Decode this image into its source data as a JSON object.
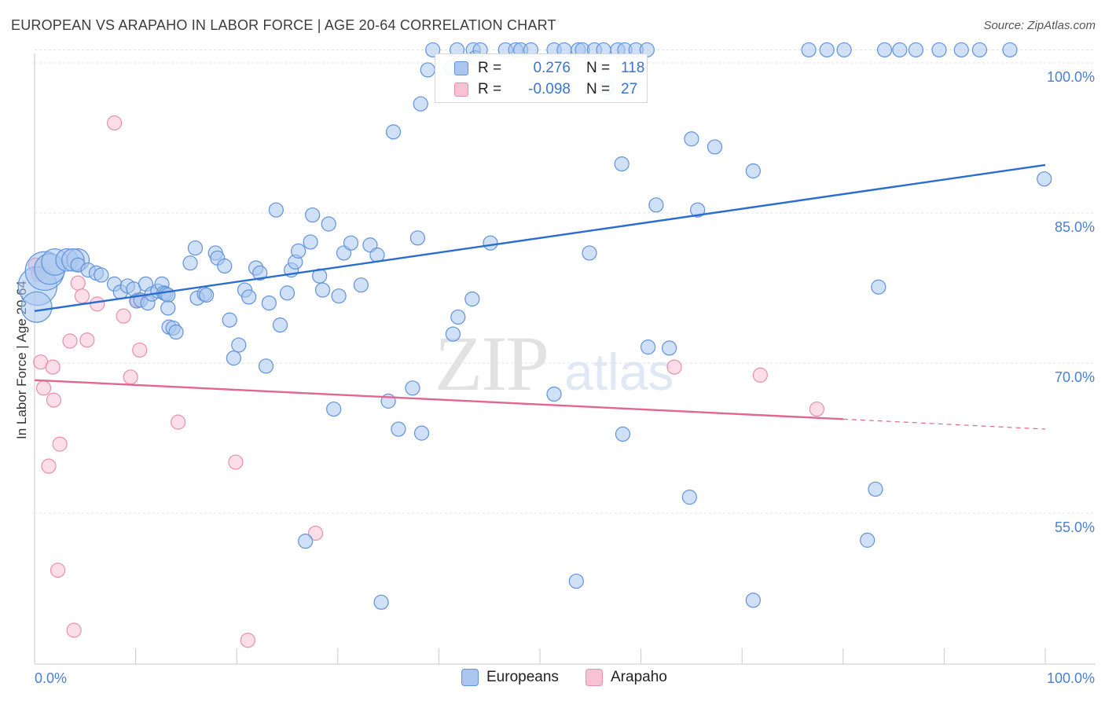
{
  "header": {
    "title": "EUROPEAN VS ARAPAHO IN LABOR FORCE | AGE 20-64 CORRELATION CHART",
    "source": "Source: ZipAtlas.com"
  },
  "watermark": {
    "zip": "ZIP",
    "atlas": "atlas"
  },
  "legend": {
    "rows": [
      {
        "r_label": "R =",
        "r_value": "0.276",
        "n_label": "N =",
        "n_value": "118",
        "color": "#a9c6ef",
        "stroke": "#5f93dc"
      },
      {
        "r_label": "R =",
        "r_value": "-0.098",
        "n_label": "N =",
        "n_value": "27",
        "color": "#f7c3d4",
        "stroke": "#e890ab"
      }
    ]
  },
  "bottom_legend": {
    "europeans": "Europeans",
    "arapaho": "Arapaho"
  },
  "colors": {
    "european_fill": "#a9c6ef",
    "european_stroke": "#5f93dc",
    "european_line": "#2a6dcf",
    "arapaho_fill": "#f7c3d4",
    "arapaho_stroke": "#e890ab",
    "arapaho_line": "#e2668e",
    "grid": "#dde2ea",
    "tick_label": "#4a7fd4"
  },
  "chart_data": {
    "type": "scatter",
    "title": "EUROPEAN VS ARAPAHO IN LABOR FORCE | AGE 20-64 CORRELATION CHART",
    "xlabel": "",
    "ylabel": "In Labor Force | Age 20-64",
    "xlim": [
      0,
      100
    ],
    "ylim": [
      38.5,
      102
    ],
    "x_tick_labels": {
      "left": "0.0%",
      "right": "100.0%"
    },
    "y_ticks": [
      {
        "value": 100,
        "label": "100.0%"
      },
      {
        "value": 85,
        "label": "85.0%"
      },
      {
        "value": 70,
        "label": "70.0%"
      },
      {
        "value": 55,
        "label": "55.0%"
      }
    ],
    "series": [
      {
        "name": "Europeans",
        "R": 0.276,
        "N": 118,
        "trend": {
          "x0": 0,
          "y0": 75.2,
          "x1": 100,
          "y1": 89.8
        },
        "points": [
          [
            0.3,
            77.7,
            6
          ],
          [
            0.2,
            75.6,
            4
          ],
          [
            1,
            79.2,
            6
          ],
          [
            1.5,
            79.4,
            4
          ],
          [
            2,
            80.1,
            3
          ],
          [
            3.2,
            80.3,
            2
          ],
          [
            4.3,
            80.3,
            2
          ],
          [
            3.8,
            80.3,
            2
          ],
          [
            4.3,
            79.8,
            1
          ],
          [
            5.3,
            79.3,
            1
          ],
          [
            6.1,
            79,
            1
          ],
          [
            6.6,
            78.8,
            1
          ],
          [
            7.9,
            77.9,
            1
          ],
          [
            8.5,
            77.1,
            1
          ],
          [
            9.2,
            77.7,
            1
          ],
          [
            9.8,
            77.4,
            1
          ],
          [
            10.1,
            76.2,
            1
          ],
          [
            10.5,
            76.3,
            1
          ],
          [
            11,
            77.9,
            1
          ],
          [
            11.2,
            76,
            1
          ],
          [
            11.6,
            76.9,
            1
          ],
          [
            12.2,
            77.2,
            1
          ],
          [
            12.6,
            77.9,
            1
          ],
          [
            12.8,
            77,
            1
          ],
          [
            13,
            76.9,
            1
          ],
          [
            13.2,
            76.8,
            1
          ],
          [
            13.3,
            73.6,
            1
          ],
          [
            13.7,
            73.5,
            1
          ],
          [
            14,
            73.1,
            1
          ],
          [
            13.2,
            75.5,
            1
          ],
          [
            15.4,
            80,
            1
          ],
          [
            15.9,
            81.5,
            1
          ],
          [
            16.1,
            76.5,
            1
          ],
          [
            16.8,
            76.9,
            1
          ],
          [
            17,
            76.8,
            1
          ],
          [
            17.9,
            81,
            1
          ],
          [
            18.1,
            80.5,
            1
          ],
          [
            18.8,
            79.7,
            1
          ],
          [
            19.3,
            74.3,
            1
          ],
          [
            19.7,
            70.5,
            1
          ],
          [
            20.2,
            71.8,
            1
          ],
          [
            20.8,
            77.3,
            1
          ],
          [
            21.2,
            76.6,
            1
          ],
          [
            21.9,
            79.5,
            1
          ],
          [
            22.3,
            79,
            1
          ],
          [
            22.9,
            69.7,
            1
          ],
          [
            23.2,
            76,
            1
          ],
          [
            23.9,
            85.3,
            1
          ],
          [
            24.3,
            73.8,
            1
          ],
          [
            25,
            77,
            1
          ],
          [
            25.4,
            79.3,
            1
          ],
          [
            25.8,
            80.1,
            1
          ],
          [
            26.1,
            81.2,
            1
          ],
          [
            26.8,
            52.2,
            1
          ],
          [
            27.3,
            82.1,
            1
          ],
          [
            27.5,
            84.8,
            1
          ],
          [
            28.2,
            78.7,
            1
          ],
          [
            28.5,
            77.3,
            1
          ],
          [
            29.1,
            83.9,
            1
          ],
          [
            29.6,
            65.4,
            1
          ],
          [
            30.1,
            76.7,
            1
          ],
          [
            30.6,
            81,
            1
          ],
          [
            31.3,
            82,
            1
          ],
          [
            32.3,
            77.8,
            1
          ],
          [
            33.2,
            81.8,
            1
          ],
          [
            33.9,
            80.8,
            1
          ],
          [
            34.3,
            46.1,
            1
          ],
          [
            35,
            66.2,
            1
          ],
          [
            35.5,
            93.1,
            1
          ],
          [
            36,
            63.4,
            1
          ],
          [
            37.4,
            67.5,
            1
          ],
          [
            38.3,
            63,
            1
          ],
          [
            37.9,
            82.5,
            1
          ],
          [
            38.2,
            95.9,
            1
          ],
          [
            38.9,
            99.3,
            1
          ],
          [
            39.4,
            101.3,
            1
          ],
          [
            41.2,
            99.5,
            1
          ],
          [
            41.8,
            101.3,
            1
          ],
          [
            43.4,
            101.3,
            1
          ],
          [
            43.6,
            100.5,
            1
          ],
          [
            44.1,
            101.3,
            1
          ],
          [
            46.6,
            101.3,
            1
          ],
          [
            47.6,
            101.3,
            1
          ],
          [
            48.1,
            101.3,
            1
          ],
          [
            49.1,
            101.3,
            1
          ],
          [
            51.4,
            101.3,
            1
          ],
          [
            52.4,
            101.3,
            1
          ],
          [
            53.8,
            101.3,
            1
          ],
          [
            54.2,
            101.3,
            1
          ],
          [
            55.4,
            101.3,
            1
          ],
          [
            56.3,
            101.3,
            1
          ],
          [
            57.7,
            101.3,
            1
          ],
          [
            58.4,
            101.3,
            1
          ],
          [
            59.5,
            101.3,
            1
          ],
          [
            60.6,
            101.3,
            1
          ],
          [
            56.6,
            97.5,
            1
          ],
          [
            54.9,
            81,
            1
          ],
          [
            53.6,
            48.2,
            1
          ],
          [
            51.4,
            66.9,
            1
          ],
          [
            58.2,
            62.9,
            1
          ],
          [
            58.1,
            89.9,
            1
          ],
          [
            60.7,
            71.6,
            1
          ],
          [
            61.5,
            85.8,
            1
          ],
          [
            62.8,
            71.5,
            1
          ],
          [
            64.8,
            56.6,
            1
          ],
          [
            65,
            92.4,
            1
          ],
          [
            65.6,
            85.3,
            1
          ],
          [
            67.3,
            91.6,
            1
          ],
          [
            71.1,
            46.3,
            1
          ],
          [
            71.1,
            89.2,
            1
          ],
          [
            76.6,
            101.3,
            1
          ],
          [
            78.4,
            101.3,
            1
          ],
          [
            80.1,
            101.3,
            1
          ],
          [
            82.4,
            52.3,
            1
          ],
          [
            83.2,
            57.4,
            1
          ],
          [
            84.1,
            101.3,
            1
          ],
          [
            85.6,
            101.3,
            1
          ],
          [
            87.2,
            101.3,
            1
          ],
          [
            89.5,
            101.3,
            1
          ],
          [
            91.7,
            101.3,
            1
          ],
          [
            93.5,
            101.3,
            1
          ],
          [
            96.5,
            101.3,
            1
          ],
          [
            99.9,
            88.4,
            1
          ],
          [
            83.5,
            77.6,
            1
          ],
          [
            45.1,
            82,
            1
          ],
          [
            41.9,
            74.6,
            1
          ],
          [
            41.4,
            72.9,
            1
          ],
          [
            43.3,
            76.4,
            1
          ]
        ]
      },
      {
        "name": "Arapaho",
        "R": -0.098,
        "N": 27,
        "trend": {
          "x0": 0,
          "y0": 68.3,
          "x1": 80,
          "y1": 64.4
        },
        "trend_dashed": {
          "x0": 80,
          "y0": 64.4,
          "x1": 100,
          "y1": 63.4
        },
        "points": [
          [
            0.1,
            79.8,
            1
          ],
          [
            0.4,
            78.9,
            1
          ],
          [
            0.6,
            70.1,
            1
          ],
          [
            0.9,
            67.5,
            1
          ],
          [
            1.4,
            59.7,
            1
          ],
          [
            1.8,
            69.6,
            1
          ],
          [
            1.9,
            66.3,
            1
          ],
          [
            2.3,
            49.3,
            1
          ],
          [
            2.5,
            61.9,
            1
          ],
          [
            3.5,
            72.2,
            1
          ],
          [
            3.9,
            43.3,
            1
          ],
          [
            4.3,
            78,
            1
          ],
          [
            4.7,
            76.7,
            1
          ],
          [
            5.2,
            72.3,
            1
          ],
          [
            6.2,
            75.9,
            1
          ],
          [
            7.9,
            94,
            1
          ],
          [
            8.8,
            74.7,
            1
          ],
          [
            9.5,
            68.6,
            1
          ],
          [
            10.2,
            76.3,
            1
          ],
          [
            10.4,
            71.3,
            1
          ],
          [
            14.2,
            64.1,
            1
          ],
          [
            19.9,
            60.1,
            1
          ],
          [
            21.1,
            42.3,
            1
          ],
          [
            27.8,
            53,
            1
          ],
          [
            63.3,
            69.6,
            1
          ],
          [
            71.8,
            68.8,
            1
          ],
          [
            77.4,
            65.4,
            1
          ]
        ]
      }
    ]
  }
}
